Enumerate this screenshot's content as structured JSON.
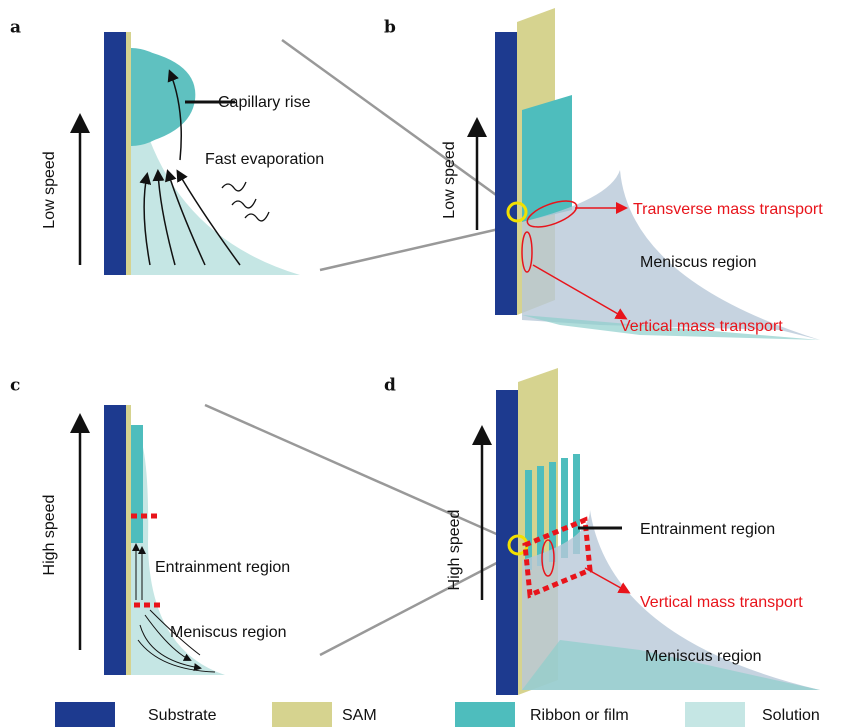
{
  "panels": [
    {
      "label": "a",
      "speed": "Low speed",
      "annotations": [
        "Capillary rise",
        "Fast evaporation"
      ]
    },
    {
      "label": "b",
      "speed": "Low speed",
      "annotations": [
        "Transverse mass transport",
        "Meniscus region",
        "Vertical mass transport"
      ]
    },
    {
      "label": "c",
      "speed": "High speed",
      "annotations": [
        "Entrainment region",
        "Meniscus region"
      ]
    },
    {
      "label": "d",
      "speed": "High speed",
      "annotations": [
        "Entrainment region",
        "Vertical mass transport",
        "Meniscus region"
      ]
    }
  ],
  "legend": [
    "Substrate",
    "SAM",
    "Ribbon or film",
    "Solution"
  ]
}
